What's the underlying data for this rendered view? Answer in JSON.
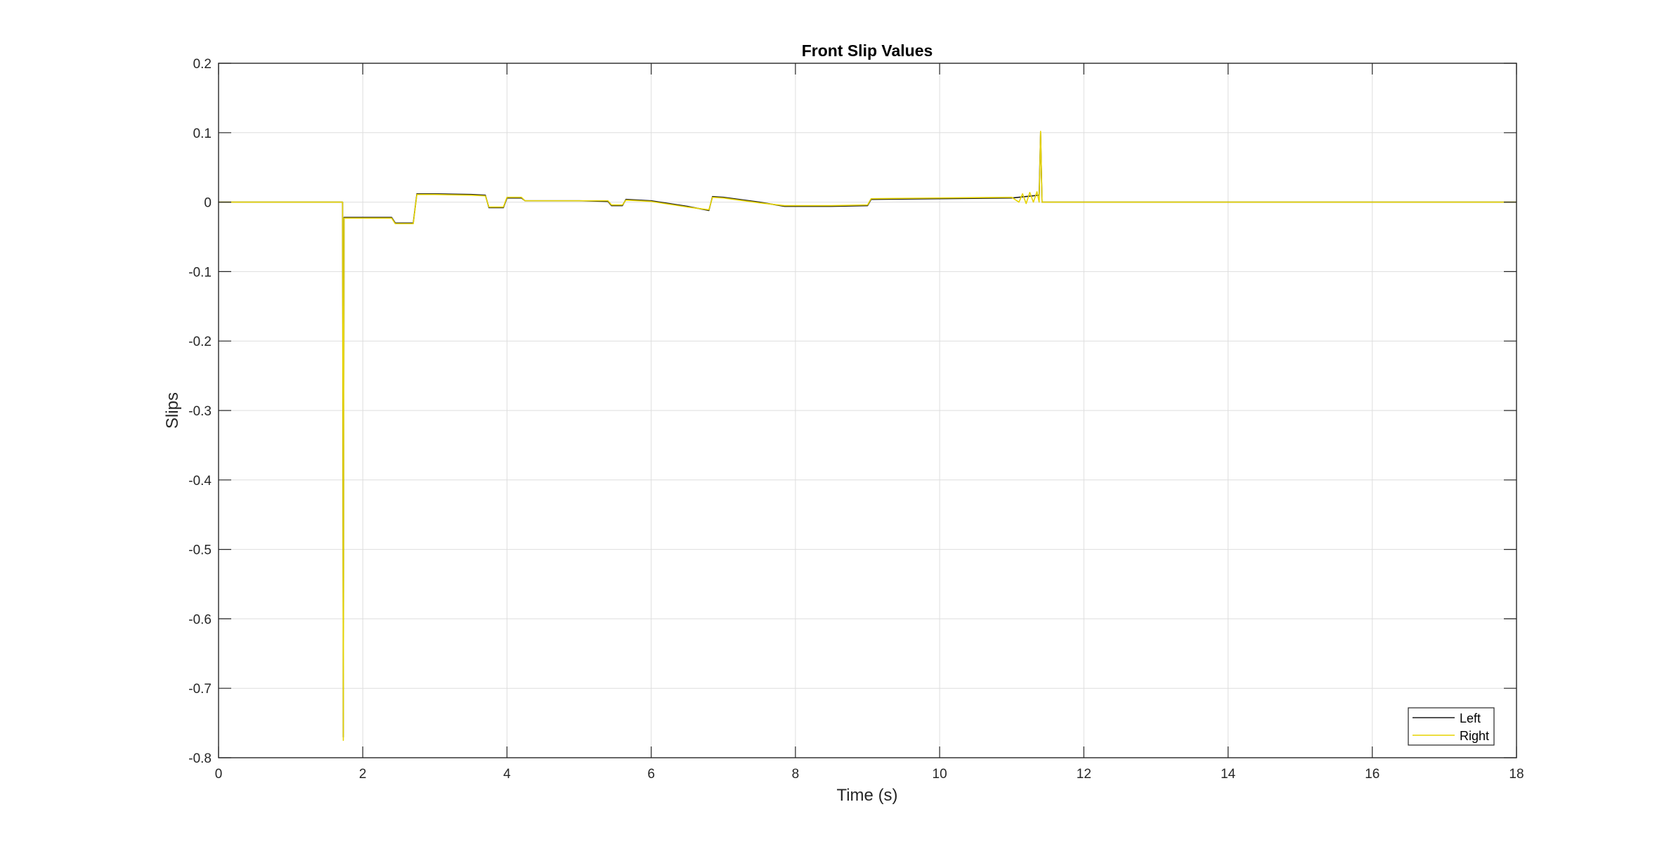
{
  "chart_data": {
    "type": "line",
    "title": "Front Slip Values",
    "xlabel": "Time (s)",
    "ylabel": "Slips",
    "xlim": [
      0,
      18
    ],
    "ylim": [
      -0.8,
      0.2
    ],
    "xticks": [
      0,
      2,
      4,
      6,
      8,
      10,
      12,
      14,
      16,
      18
    ],
    "xtick_labels": [
      "0",
      "2",
      "4",
      "6",
      "8",
      "10",
      "12",
      "14",
      "16",
      "18"
    ],
    "yticks": [
      0.2,
      0.1,
      0,
      -0.1,
      -0.2,
      -0.3,
      -0.4,
      -0.5,
      -0.6,
      -0.7,
      -0.8
    ],
    "ytick_labels": [
      "0.2",
      "0.1",
      "0",
      "-0.1",
      "-0.2",
      "-0.3",
      "-0.4",
      "-0.5",
      "-0.6",
      "-0.7",
      "-0.8"
    ],
    "grid": true,
    "legend_position": "bottom-right",
    "series": [
      {
        "name": "Left",
        "color": "#1a1a1a",
        "x": [
          0,
          1.72,
          1.73,
          1.74,
          2.0,
          2.4,
          2.45,
          2.7,
          2.75,
          3.0,
          3.5,
          3.7,
          3.75,
          3.95,
          4.0,
          4.2,
          4.25,
          5.0,
          5.4,
          5.45,
          5.6,
          5.65,
          6.0,
          6.5,
          6.8,
          6.85,
          7.0,
          7.5,
          7.85,
          8.5,
          9.0,
          9.05,
          10.0,
          11.0,
          11.38,
          11.4,
          11.42,
          18
        ],
        "y": [
          0,
          0,
          -0.77,
          -0.022,
          -0.022,
          -0.022,
          -0.03,
          -0.03,
          0.012,
          0.012,
          0.011,
          0.01,
          -0.008,
          -0.008,
          0.006,
          0.006,
          0.002,
          0.002,
          0.001,
          -0.005,
          -0.005,
          0.004,
          0.002,
          -0.006,
          -0.012,
          0.008,
          0.007,
          0.0,
          -0.006,
          -0.006,
          -0.005,
          0.004,
          0.005,
          0.006,
          0.01,
          0.1,
          0,
          0
        ]
      },
      {
        "name": "Right",
        "color": "#e6d400",
        "x": [
          0,
          1.72,
          1.73,
          1.74,
          2.0,
          2.4,
          2.45,
          2.7,
          2.75,
          3.0,
          3.5,
          3.7,
          3.75,
          3.95,
          4.0,
          4.2,
          4.25,
          5.0,
          5.4,
          5.45,
          5.6,
          5.65,
          6.0,
          6.5,
          6.8,
          6.85,
          7.0,
          7.5,
          7.85,
          8.5,
          9.0,
          9.05,
          10.0,
          11.0,
          11.1,
          11.15,
          11.2,
          11.25,
          11.3,
          11.35,
          11.38,
          11.4,
          11.42,
          18
        ],
        "y": [
          0,
          0,
          -0.775,
          -0.023,
          -0.023,
          -0.023,
          -0.031,
          -0.031,
          0.011,
          0.011,
          0.01,
          0.009,
          -0.007,
          -0.007,
          0.007,
          0.007,
          0.002,
          0.002,
          0.002,
          -0.004,
          -0.004,
          0.003,
          0.001,
          -0.007,
          -0.011,
          0.007,
          0.006,
          -0.001,
          -0.005,
          -0.005,
          -0.004,
          0.005,
          0.006,
          0.007,
          0.0,
          0.012,
          -0.002,
          0.014,
          0.0,
          0.015,
          0.0,
          0.102,
          0,
          0
        ]
      }
    ]
  }
}
